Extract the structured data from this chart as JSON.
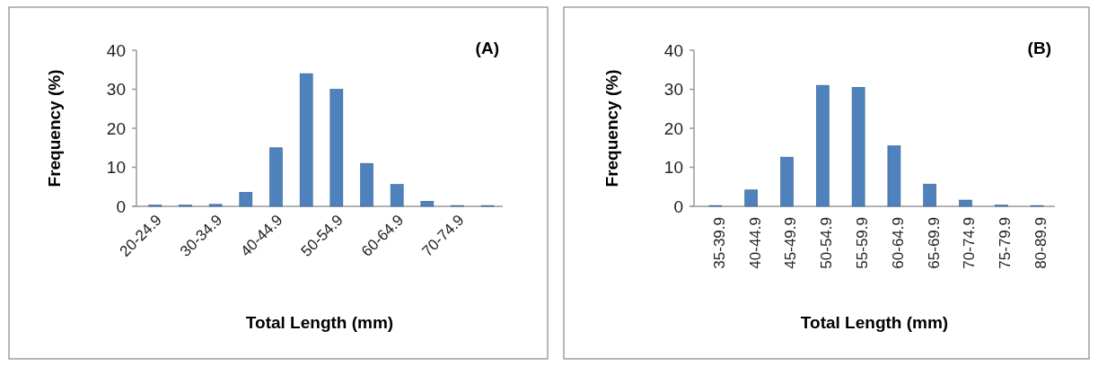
{
  "chart_data": [
    {
      "type": "bar",
      "title": "(A)",
      "xlabel": "Total Length (mm)",
      "ylabel": "Frequency (%)",
      "categories": [
        "20-24.9",
        null,
        "30-34.9",
        null,
        "40-44.9",
        null,
        "50-54.9",
        null,
        "60-64.9",
        null,
        "70-74.9",
        null
      ],
      "values": [
        0.3,
        0.3,
        0.5,
        3.6,
        15,
        34,
        30,
        11,
        5.6,
        1.3,
        0.2,
        0.2
      ],
      "color": "#4f81bd",
      "ylim": [
        0,
        40
      ],
      "yticks": [
        0,
        10,
        20,
        30,
        40
      ],
      "grid": false
    },
    {
      "type": "bar",
      "title": "(B)",
      "xlabel": "Total Length (mm)",
      "ylabel": "Frequency (%)",
      "categories": [
        "35-39.9",
        "40-44.9",
        "45-49.9",
        "50-54.9",
        "55-59.9",
        "60-64.9",
        "65-69.9",
        "70-74.9",
        "75-79.9",
        "80-89.9"
      ],
      "values": [
        0.2,
        4.2,
        12.6,
        31,
        30.5,
        15.5,
        5.7,
        1.6,
        0.3,
        0.2
      ],
      "color": "#4f81bd",
      "ylim": [
        0,
        40
      ],
      "yticks": [
        0,
        10,
        20,
        30,
        40
      ],
      "grid": false
    }
  ]
}
